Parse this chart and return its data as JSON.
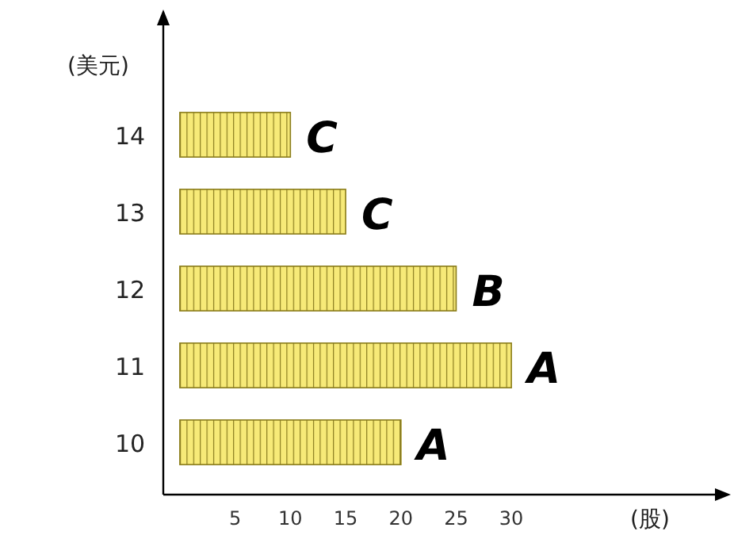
{
  "chart_data": {
    "type": "bar",
    "orientation": "horizontal",
    "xlabel": "(股)",
    "ylabel": "(美元)",
    "categories": [
      "14",
      "13",
      "12",
      "11",
      "10"
    ],
    "values": [
      10,
      15,
      25,
      30,
      20
    ],
    "color": "#f7ea78",
    "xlim": [
      -1.5,
      49
    ],
    "xticks": [
      5,
      10,
      15,
      20,
      25,
      30
    ],
    "annotations": [
      {
        "text": "C",
        "x": 10,
        "y": "14"
      },
      {
        "text": "C",
        "x": 15,
        "y": "13"
      },
      {
        "text": "B",
        "x": 25,
        "y": "12"
      },
      {
        "text": "A",
        "x": 30,
        "y": "11"
      },
      {
        "text": "A",
        "x": 20,
        "y": "10"
      }
    ]
  }
}
